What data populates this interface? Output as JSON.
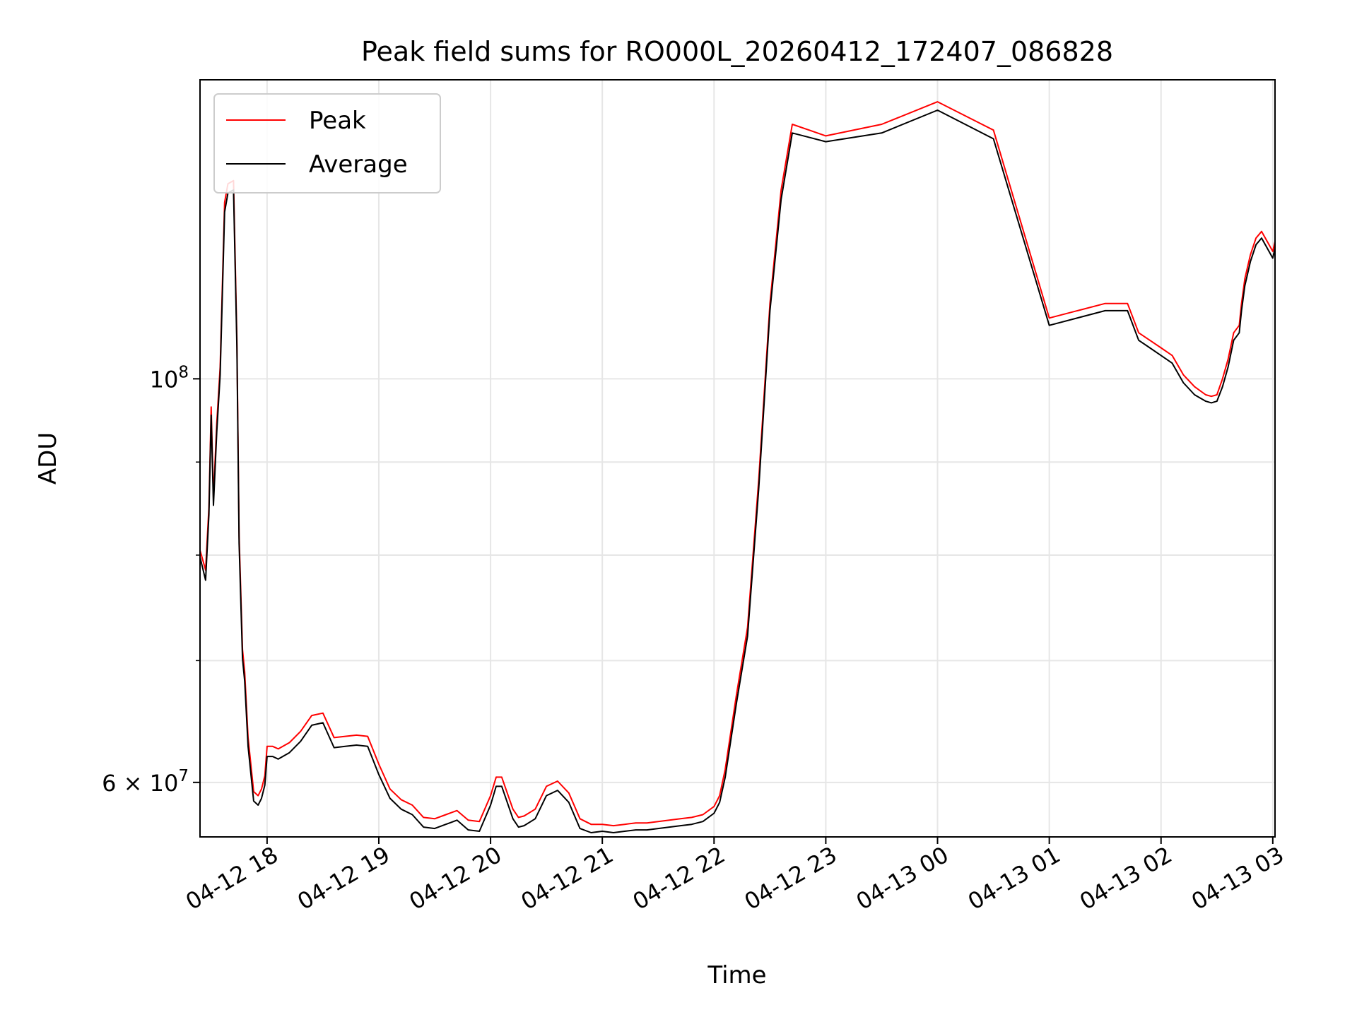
{
  "chart_data": {
    "type": "line",
    "title": "Peak field sums for RO000L_20260412_172407_086828",
    "xlabel": "Time",
    "ylabel": "ADU",
    "yscale": "log",
    "x_unit": "hours since 04-12 17:00",
    "xlim": [
      0.4,
      10.02
    ],
    "ylim": [
      56000000,
      146000000
    ],
    "grid": true,
    "legend_position": "upper left",
    "x_ticks": [
      {
        "value": 1,
        "label": "04-12 18"
      },
      {
        "value": 2,
        "label": "04-12 19"
      },
      {
        "value": 3,
        "label": "04-12 20"
      },
      {
        "value": 4,
        "label": "04-12 21"
      },
      {
        "value": 5,
        "label": "04-12 22"
      },
      {
        "value": 6,
        "label": "04-12 23"
      },
      {
        "value": 7,
        "label": "04-13 00"
      },
      {
        "value": 8,
        "label": "04-13 01"
      },
      {
        "value": 9,
        "label": "04-13 02"
      },
      {
        "value": 10,
        "label": "04-13 03"
      }
    ],
    "y_major_ticks": [
      {
        "value": 60000000,
        "mantissa": "6",
        "times": "×",
        "base": "10",
        "exponent": "7"
      },
      {
        "value": 100000000,
        "mantissa": "",
        "times": "",
        "base": "10",
        "exponent": "8"
      }
    ],
    "y_minor_ticks": [
      70000000,
      80000000,
      90000000
    ],
    "x": [
      0.4,
      0.45,
      0.48,
      0.5,
      0.52,
      0.55,
      0.58,
      0.62,
      0.65,
      0.7,
      0.73,
      0.75,
      0.78,
      0.8,
      0.83,
      0.88,
      0.92,
      0.95,
      0.98,
      1.0,
      1.05,
      1.1,
      1.2,
      1.3,
      1.4,
      1.5,
      1.6,
      1.7,
      1.8,
      1.9,
      2.0,
      2.1,
      2.2,
      2.3,
      2.4,
      2.5,
      2.6,
      2.7,
      2.8,
      2.9,
      3.0,
      3.05,
      3.1,
      3.2,
      3.25,
      3.3,
      3.4,
      3.5,
      3.6,
      3.7,
      3.8,
      3.9,
      4.0,
      4.1,
      4.2,
      4.3,
      4.4,
      4.5,
      4.6,
      4.7,
      4.8,
      4.9,
      5.0,
      5.05,
      5.1,
      5.2,
      5.3,
      5.4,
      5.5,
      5.6,
      5.7,
      6.0,
      6.5,
      7.0,
      7.5,
      8.0,
      8.5,
      8.7,
      8.8,
      8.9,
      9.0,
      9.1,
      9.2,
      9.3,
      9.4,
      9.45,
      9.5,
      9.55,
      9.6,
      9.65,
      9.7,
      9.72,
      9.75,
      9.8,
      9.85,
      9.9,
      9.95,
      10.0,
      10.02
    ],
    "series": [
      {
        "name": "Peak",
        "color": "#ff0000",
        "values": [
          80500000,
          78500000,
          85000000,
          96500000,
          86000000,
          94500000,
          101500000,
          125000000,
          128000000,
          128500000,
          105000000,
          82000000,
          71000000,
          69000000,
          63500000,
          59300000,
          59000000,
          59500000,
          60500000,
          62800000,
          62800000,
          62600000,
          63100000,
          64000000,
          65300000,
          65500000,
          63500000,
          63600000,
          63700000,
          63600000,
          61400000,
          59500000,
          58700000,
          58300000,
          57400000,
          57300000,
          57600000,
          57900000,
          57200000,
          57100000,
          59000000,
          60400000,
          60400000,
          58000000,
          57400000,
          57500000,
          58000000,
          59700000,
          60100000,
          59200000,
          57300000,
          56900000,
          56900000,
          56800000,
          56900000,
          57000000,
          57000000,
          57100000,
          57200000,
          57300000,
          57400000,
          57600000,
          58200000,
          59000000,
          61000000,
          67000000,
          73000000,
          88000000,
          110000000,
          127000000,
          138000000,
          136000000,
          138000000,
          142000000,
          137000000,
          108000000,
          110000000,
          110000000,
          106000000,
          105000000,
          104000000,
          103000000,
          100500000,
          99000000,
          98000000,
          97800000,
          98000000,
          100000000,
          102500000,
          106000000,
          107000000,
          110000000,
          113500000,
          117000000,
          119500000,
          120500000,
          119000000,
          117500000,
          119000000
        ]
      },
      {
        "name": "Average",
        "color": "#000000",
        "values": [
          79800000,
          77500000,
          84200000,
          95500000,
          85200000,
          93500000,
          100500000,
          123500000,
          126500000,
          127000000,
          104000000,
          81200000,
          70200000,
          68200000,
          62800000,
          58600000,
          58300000,
          58800000,
          59800000,
          62000000,
          62000000,
          61800000,
          62300000,
          63200000,
          64500000,
          64700000,
          62700000,
          62800000,
          62900000,
          62800000,
          60600000,
          58800000,
          58000000,
          57600000,
          56700000,
          56600000,
          56900000,
          57200000,
          56500000,
          56400000,
          58300000,
          59700000,
          59700000,
          57300000,
          56700000,
          56800000,
          57300000,
          59000000,
          59400000,
          58500000,
          56600000,
          56300000,
          56400000,
          56300000,
          56400000,
          56500000,
          56500000,
          56600000,
          56700000,
          56800000,
          56900000,
          57100000,
          57700000,
          58500000,
          60400000,
          66300000,
          72200000,
          87000000,
          109000000,
          125500000,
          136500000,
          135000000,
          136500000,
          140500000,
          135500000,
          107000000,
          109000000,
          109000000,
          105000000,
          104000000,
          103000000,
          102000000,
          99500000,
          98000000,
          97200000,
          97000000,
          97200000,
          99000000,
          101500000,
          105000000,
          106000000,
          109000000,
          112500000,
          116000000,
          118500000,
          119500000,
          118000000,
          116500000,
          118000000
        ]
      }
    ]
  }
}
